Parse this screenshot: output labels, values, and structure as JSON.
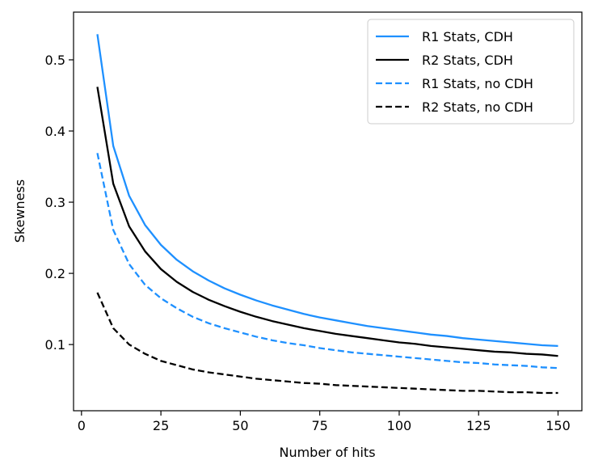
{
  "chart_data": {
    "type": "line",
    "title": "",
    "xlabel": "Number of hits",
    "ylabel": "Skewness",
    "xlim": [
      -2.5,
      157.5
    ],
    "ylim": [
      0.007,
      0.567
    ],
    "xticks": [
      0,
      25,
      50,
      75,
      100,
      125,
      150
    ],
    "yticks": [
      0.1,
      0.2,
      0.3,
      0.4,
      0.5
    ],
    "grid": false,
    "legend_position": "top-right",
    "x": [
      5,
      10,
      15,
      20,
      25,
      30,
      35,
      40,
      45,
      50,
      55,
      60,
      65,
      70,
      75,
      80,
      85,
      90,
      95,
      100,
      105,
      110,
      115,
      120,
      125,
      130,
      135,
      140,
      145,
      150
    ],
    "series": [
      {
        "name": "R1 Stats, CDH",
        "color": "#1e90ff",
        "style": "solid",
        "values": [
          0.536,
          0.379,
          0.309,
          0.268,
          0.24,
          0.219,
          0.203,
          0.19,
          0.179,
          0.17,
          0.162,
          0.155,
          0.149,
          0.143,
          0.138,
          0.134,
          0.13,
          0.126,
          0.123,
          0.12,
          0.117,
          0.114,
          0.112,
          0.109,
          0.107,
          0.105,
          0.103,
          0.101,
          0.099,
          0.098
        ]
      },
      {
        "name": "R2 Stats, CDH",
        "color": "#000000",
        "style": "solid",
        "values": [
          0.462,
          0.326,
          0.266,
          0.231,
          0.206,
          0.188,
          0.174,
          0.163,
          0.154,
          0.146,
          0.139,
          0.133,
          0.128,
          0.123,
          0.119,
          0.115,
          0.112,
          0.109,
          0.106,
          0.103,
          0.101,
          0.098,
          0.096,
          0.094,
          0.092,
          0.09,
          0.089,
          0.087,
          0.086,
          0.084
        ]
      },
      {
        "name": "R1 Stats, no CDH",
        "color": "#1e90ff",
        "style": "dashed",
        "values": [
          0.369,
          0.261,
          0.213,
          0.184,
          0.165,
          0.151,
          0.139,
          0.13,
          0.123,
          0.117,
          0.111,
          0.106,
          0.102,
          0.099,
          0.095,
          0.092,
          0.089,
          0.087,
          0.085,
          0.083,
          0.081,
          0.079,
          0.077,
          0.075,
          0.074,
          0.072,
          0.071,
          0.07,
          0.068,
          0.067
        ]
      },
      {
        "name": "R2 Stats, no CDH",
        "color": "#000000",
        "style": "dashed",
        "values": [
          0.173,
          0.123,
          0.1,
          0.087,
          0.077,
          0.071,
          0.065,
          0.061,
          0.058,
          0.055,
          0.052,
          0.05,
          0.048,
          0.046,
          0.045,
          0.043,
          0.042,
          0.041,
          0.04,
          0.039,
          0.038,
          0.037,
          0.036,
          0.035,
          0.035,
          0.034,
          0.033,
          0.033,
          0.032,
          0.032
        ]
      }
    ]
  }
}
